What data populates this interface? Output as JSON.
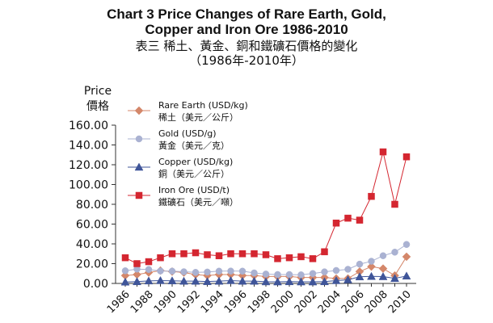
{
  "titles": {
    "line1": "Chart 3 Price Changes of Rare Earth, Gold,",
    "line2": "Copper and Iron Ore 1986-2010",
    "line3": "表三 稀土、黃金、銅和鐵礦石價格的變化",
    "line4": "（1986年-2010年）"
  },
  "colors": {
    "rare_earth": "#d4876a",
    "gold": "#aab2d2",
    "copper": "#3f5599",
    "iron_ore": "#d42630",
    "axis": "#333333"
  },
  "chart_data": {
    "type": "line",
    "title": "Chart 3 Price Changes of Rare Earth, Gold, Copper and Iron Ore 1986-2010",
    "ylabel": "Price",
    "ylabel_zh": "價格",
    "xlabel": "",
    "ylim": [
      0,
      160
    ],
    "yticks": [
      0,
      20,
      40,
      60,
      80,
      100,
      120,
      140,
      160
    ],
    "ytick_labels": [
      "0.00",
      "20.00",
      "40.00",
      "60.00",
      "80.00",
      "100.00",
      "120.00",
      "140.00",
      "160.00"
    ],
    "x": [
      1986,
      1987,
      1988,
      1989,
      1990,
      1991,
      1992,
      1993,
      1994,
      1995,
      1996,
      1997,
      1998,
      1999,
      2000,
      2001,
      2002,
      2003,
      2004,
      2005,
      2006,
      2007,
      2008,
      2009,
      2010
    ],
    "xtick_labels": [
      "1986",
      "1988",
      "1990",
      "1992",
      "1994",
      "1996",
      "1998",
      "2000",
      "2002",
      "2004",
      "2006",
      "2008",
      "2010"
    ],
    "grid": false,
    "legend_position": "top-left",
    "series": [
      {
        "key": "rare_earth",
        "name": "Rare Earth (USD/kg)",
        "name_zh": "稀土（美元／公斤）",
        "marker": "diamond",
        "values": [
          8,
          9,
          11,
          13,
          12,
          11,
          9,
          8,
          9,
          9,
          8,
          8,
          7,
          7,
          7,
          6,
          6,
          6,
          5,
          5,
          12,
          17,
          15,
          8,
          27
        ]
      },
      {
        "key": "gold",
        "name": "Gold (USD/g)",
        "name_zh": "黃金（美元／克）",
        "marker": "circle",
        "values": [
          12.8,
          14.5,
          14.1,
          12.6,
          12.4,
          11.8,
          11.2,
          11.5,
          12.4,
          12.5,
          12.4,
          10.6,
          9.5,
          9.0,
          9.0,
          8.7,
          10.0,
          11.7,
          13.1,
          14.3,
          19.5,
          22.4,
          28.0,
          31.6,
          39.4
        ]
      },
      {
        "key": "copper",
        "name": "Copper (USD/kg)",
        "name_zh": "銅（美元／公斤）",
        "marker": "triangle",
        "values": [
          1.4,
          1.8,
          2.6,
          2.9,
          2.7,
          2.3,
          2.3,
          1.9,
          2.3,
          2.9,
          2.3,
          2.3,
          1.7,
          1.6,
          1.8,
          1.6,
          1.6,
          1.8,
          2.9,
          3.7,
          6.7,
          7.1,
          6.9,
          5.1,
          7.5
        ]
      },
      {
        "key": "iron_ore",
        "name": "Iron Ore (USD/t)",
        "name_zh": "鐵礦石（美元／噸）",
        "marker": "square",
        "values": [
          26,
          20,
          22,
          26,
          30,
          30,
          31,
          29,
          28,
          30,
          30,
          30,
          29,
          25,
          26,
          27,
          25,
          32,
          61,
          66,
          64,
          88,
          133,
          80,
          128
        ]
      }
    ]
  }
}
